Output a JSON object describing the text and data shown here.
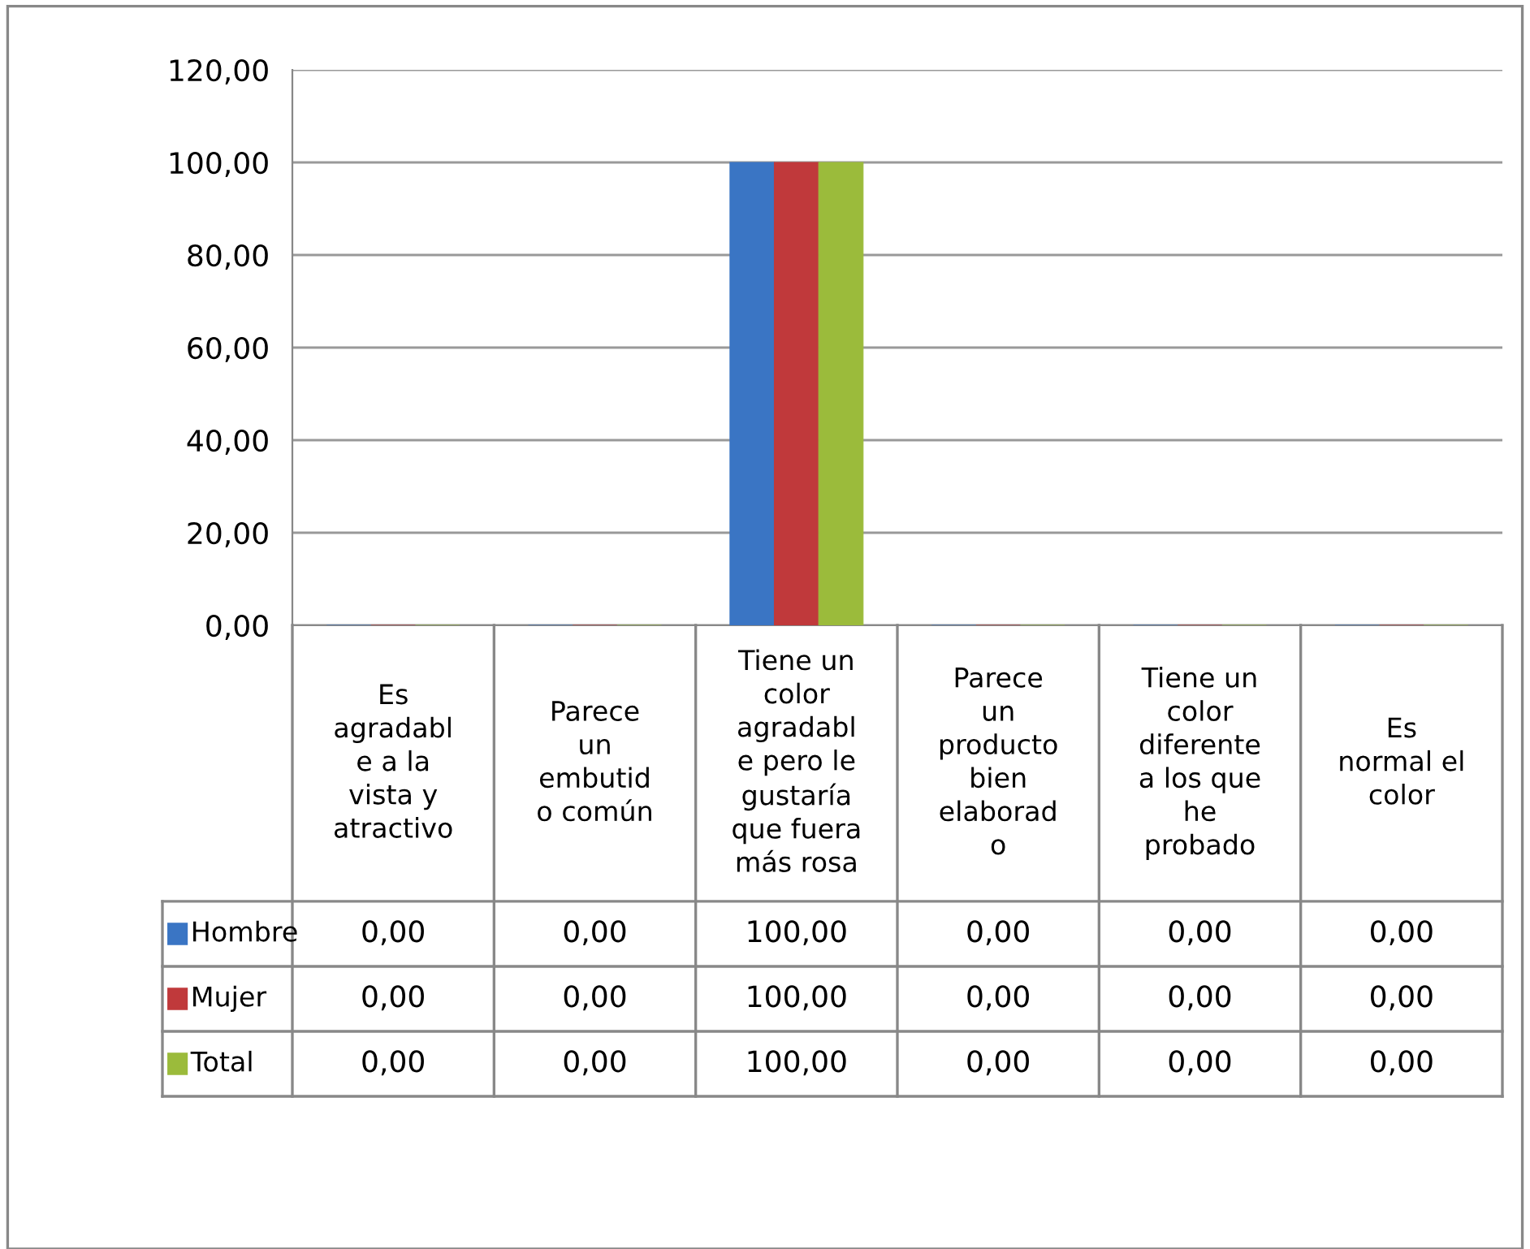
{
  "chart_data": {
    "type": "bar",
    "categories": [
      "Es\nagradabl\ne a la\nvista y\natractivo",
      "Parece\nun\nembutid\no común",
      "Tiene un\ncolor\nagradabl\ne pero le\ngustaría\nque fuera\nmás rosa",
      "Parece\nun\nproducto\nbien\nelaborad\no",
      "Tiene un\ncolor\ndiferente\na los que\nhe\nprobado",
      "Es\nnormal el\ncolor"
    ],
    "series": [
      {
        "name": "Hombre",
        "color": "#3a75c4",
        "values": [
          0,
          0,
          100,
          0,
          0,
          0
        ],
        "value_labels": [
          "0,00",
          "0,00",
          "100,00",
          "0,00",
          "0,00",
          "0,00"
        ]
      },
      {
        "name": "Mujer",
        "color": "#c0393b",
        "values": [
          0,
          0,
          100,
          0,
          0,
          0
        ],
        "value_labels": [
          "0,00",
          "0,00",
          "100,00",
          "0,00",
          "0,00",
          "0,00"
        ]
      },
      {
        "name": "Total",
        "color": "#9bbb3b",
        "values": [
          0,
          0,
          100,
          0,
          0,
          0
        ],
        "value_labels": [
          "0,00",
          "0,00",
          "100,00",
          "0,00",
          "0,00",
          "0,00"
        ]
      }
    ],
    "ylim": [
      0,
      120
    ],
    "yticks": [
      {
        "value": 0,
        "label": "0,00"
      },
      {
        "value": 20,
        "label": "20,00"
      },
      {
        "value": 40,
        "label": "40,00"
      },
      {
        "value": 60,
        "label": "60,00"
      },
      {
        "value": 80,
        "label": "80,00"
      },
      {
        "value": 100,
        "label": "100,00"
      },
      {
        "value": 120,
        "label": "120,00"
      }
    ],
    "grid": "y",
    "legend": "bottom left"
  }
}
